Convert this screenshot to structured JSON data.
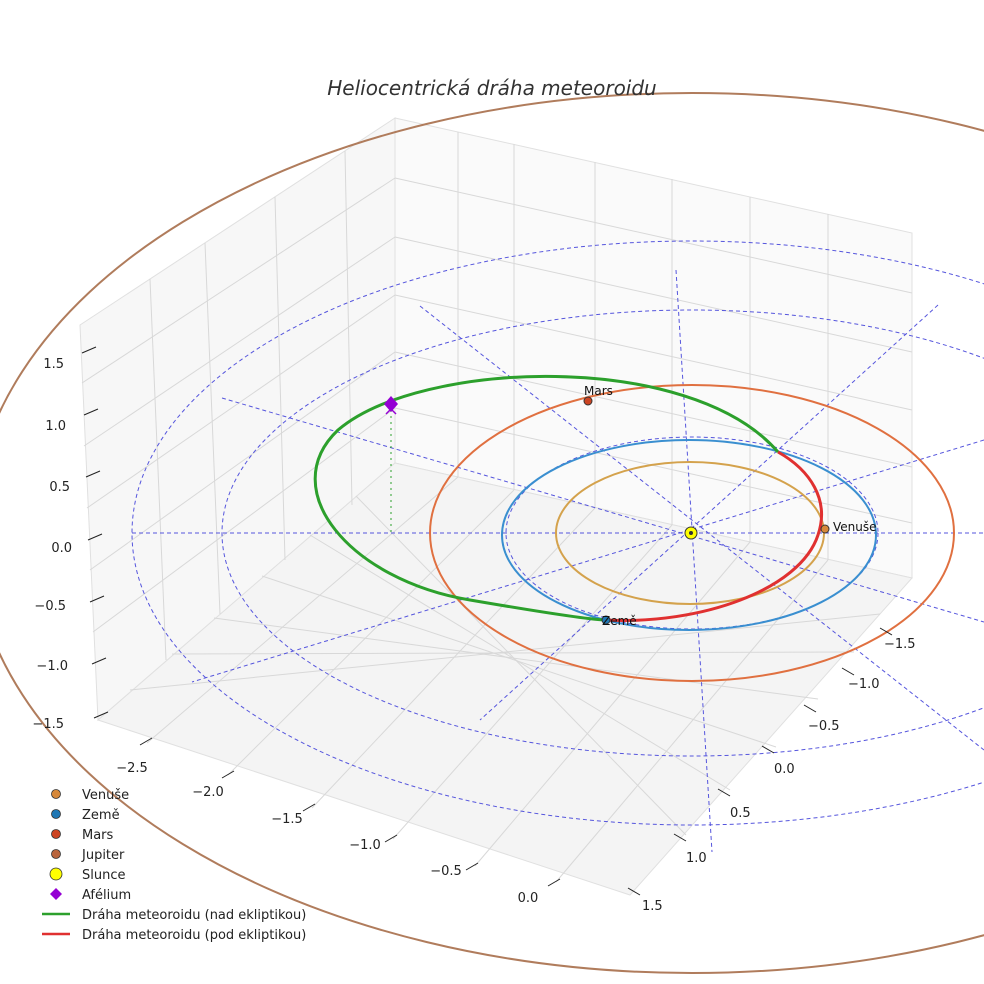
{
  "chart_data": {
    "type": "3d-orbit-plot",
    "title": "Heliocentrická dráha meteoroidu",
    "axes": {
      "x": {
        "ticks": [
          "−2.5",
          "−2.0",
          "−1.5",
          "−1.0",
          "−0.5",
          "0.0"
        ]
      },
      "y": {
        "ticks": [
          "−1.5",
          "−1.0",
          "−0.5",
          "0.0",
          "0.5",
          "1.0",
          "1.5"
        ]
      },
      "z": {
        "ticks": [
          "−1.5",
          "−1.0",
          "−0.5",
          "0.0",
          "0.5",
          "1.0",
          "1.5"
        ]
      }
    },
    "orbits": [
      {
        "name": "Venuše",
        "semi_major_au": 0.72,
        "color": "#d4a24c"
      },
      {
        "name": "Země",
        "semi_major_au": 1.0,
        "color": "#3a8fd0"
      },
      {
        "name": "Mars",
        "semi_major_au": 1.52,
        "color": "#e07040"
      },
      {
        "name": "Jupiter",
        "semi_major_au": 5.2,
        "color": "#b07c5c"
      }
    ],
    "meteoroid_path": {
      "above_ecliptic": {
        "label": "Dráha meteoroidu (nad ekliptikou)",
        "color": "#2ca02c"
      },
      "below_ecliptic": {
        "label": "Dráha meteoroidu (pod ekliptikou)",
        "color": "#e03030"
      }
    },
    "point_labels": {
      "venus": "Venuše",
      "earth": "Země",
      "mars": "Mars"
    },
    "legend": [
      {
        "label": "Venuše",
        "marker": "circle",
        "color": "#d6883a"
      },
      {
        "label": "Země",
        "marker": "circle",
        "color": "#1f77b4"
      },
      {
        "label": "Mars",
        "marker": "circle",
        "color": "#cc4422"
      },
      {
        "label": "Jupiter",
        "marker": "circle",
        "color": "#b8643c"
      },
      {
        "label": "Slunce",
        "marker": "circle-large",
        "color": "#ffff00"
      },
      {
        "label": "Afélium",
        "marker": "diamond",
        "color": "#9400d3"
      },
      {
        "label": "Dráha meteoroidu (nad ekliptikou)",
        "marker": "line",
        "color": "#2ca02c"
      },
      {
        "label": "Dráha meteoroidu (pod ekliptikou)",
        "marker": "line",
        "color": "#e03030"
      }
    ]
  }
}
